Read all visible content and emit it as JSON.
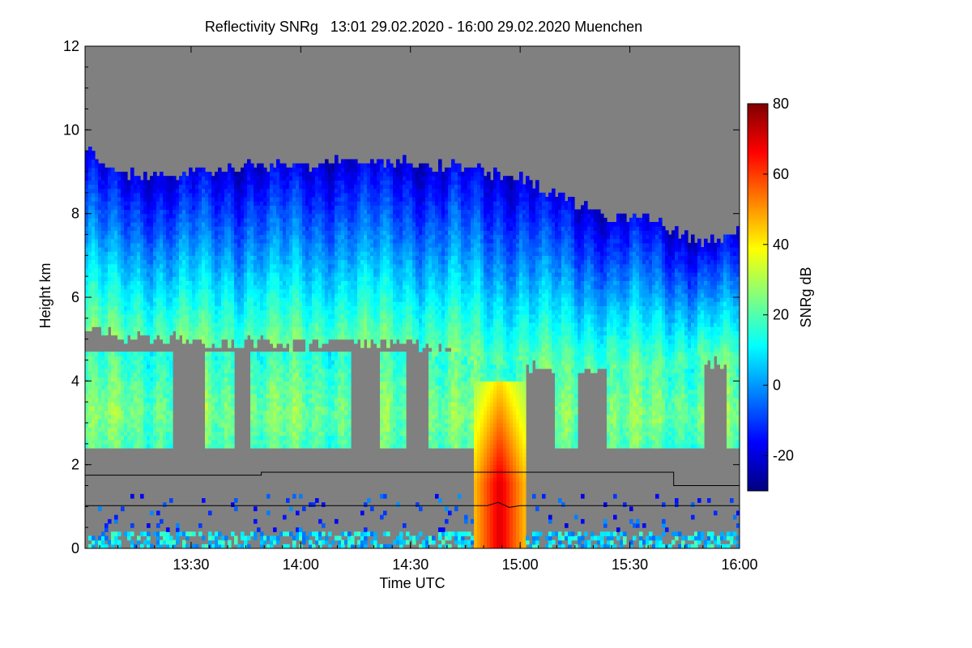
{
  "chart_data": {
    "type": "heatmap",
    "title": "Reflectivity SNRg   13:01 29.02.2020 - 16:00 29.02.2020 Muenchen",
    "xlabel": "Time UTC",
    "ylabel": "Height km",
    "x_range": [
      "13:01",
      "16:00"
    ],
    "x_ticks": [
      "13:30",
      "14:00",
      "14:30",
      "15:00",
      "15:30",
      "16:00"
    ],
    "ylim": [
      0,
      12
    ],
    "y_ticks": [
      0,
      2,
      4,
      6,
      8,
      10,
      12
    ],
    "colorbar": {
      "label": "SNRg dB",
      "range": [
        -30,
        80
      ],
      "ticks": [
        80,
        60,
        40,
        20,
        0,
        -20
      ],
      "colormap": "jet"
    },
    "background_color": "#808080",
    "overlay_line_color": "#000000",
    "cloud_top_km": [
      [
        13.03,
        9.4
      ],
      [
        13.2,
        8.9
      ],
      [
        13.4,
        8.8
      ],
      [
        13.6,
        9.0
      ],
      [
        13.8,
        9.1
      ],
      [
        14.0,
        9.1
      ],
      [
        14.2,
        9.3
      ],
      [
        14.4,
        9.2
      ],
      [
        14.6,
        9.1
      ],
      [
        14.8,
        9.0
      ],
      [
        15.0,
        8.8
      ],
      [
        15.2,
        8.3
      ],
      [
        15.4,
        7.9
      ],
      [
        15.6,
        7.8
      ],
      [
        15.8,
        7.3
      ],
      [
        16.0,
        7.5
      ]
    ],
    "cloud_base_km": [
      [
        13.03,
        5.2
      ],
      [
        13.2,
        5.0
      ],
      [
        13.4,
        5.0
      ],
      [
        13.6,
        4.8
      ],
      [
        13.8,
        4.9
      ],
      [
        14.0,
        4.8
      ],
      [
        14.2,
        4.9
      ],
      [
        14.4,
        4.9
      ],
      [
        14.6,
        4.7
      ],
      [
        14.8,
        4.4
      ],
      [
        15.0,
        4.3
      ],
      [
        15.2,
        4.2
      ],
      [
        15.4,
        4.3
      ],
      [
        15.6,
        4.1
      ],
      [
        15.8,
        4.5
      ],
      [
        16.0,
        4.3
      ]
    ],
    "precip_core": {
      "time_start": 14.78,
      "time_end": 15.02,
      "max_height_km": 4.0,
      "max_snr_db": 70
    },
    "overlay_line_km": [
      [
        13.0,
        1.75
      ],
      [
        13.5,
        1.75
      ],
      [
        13.82,
        1.75
      ],
      [
        13.82,
        1.82
      ],
      [
        14.0,
        1.82
      ],
      [
        14.5,
        1.82
      ],
      [
        15.0,
        1.82
      ],
      [
        15.5,
        1.82
      ],
      [
        15.7,
        1.82
      ],
      [
        15.7,
        1.5
      ],
      [
        16.0,
        1.5
      ]
    ],
    "overlay_line2_km": [
      [
        13.0,
        1.02
      ],
      [
        14.85,
        1.02
      ],
      [
        14.9,
        1.1
      ],
      [
        14.95,
        0.98
      ],
      [
        15.0,
        1.02
      ],
      [
        16.0,
        1.02
      ]
    ]
  }
}
